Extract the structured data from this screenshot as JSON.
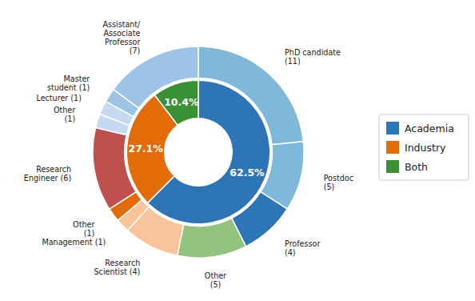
{
  "chart_data": {
    "type": "pie",
    "legend": "right",
    "data_labels": true,
    "series": [
      {
        "categories": [
          "Academia",
          "Industry",
          "Both"
        ],
        "values": [
          62.5,
          27.1,
          10.4
        ],
        "value_labels": [
          "62.5%",
          "27.1%",
          "10.4%"
        ],
        "colors": [
          "#2E75B6",
          "#E36C09",
          "#3A9134"
        ]
      },
      {
        "categories": [
          "PhD candidate\n(11)",
          "Postdoc\n(5)",
          "Professor\n(4)",
          "Other\n(5)",
          "Research\nScientist (4)",
          "Management (1)",
          "Other\n(1)",
          "Research\nEngineer (6)",
          "Other\n(1)",
          "Lecturer (1)",
          "Master\nstudent (1)",
          "Assistant/\nAssociate\nProfessor\n(7)"
        ],
        "values": [
          11,
          5,
          4,
          5,
          4,
          1,
          1,
          6,
          1,
          1,
          1,
          7
        ],
        "colors": [
          "#7EB8DA",
          "#7EB8DA",
          "#2E75B6",
          "#93C47D",
          "#F9C49A",
          "#F9C49A",
          "#E36C09",
          "#C0504D",
          "#C5D9F1",
          "#C5D9F1",
          "#9DC3E6",
          "#9DC3E6"
        ]
      }
    ]
  }
}
